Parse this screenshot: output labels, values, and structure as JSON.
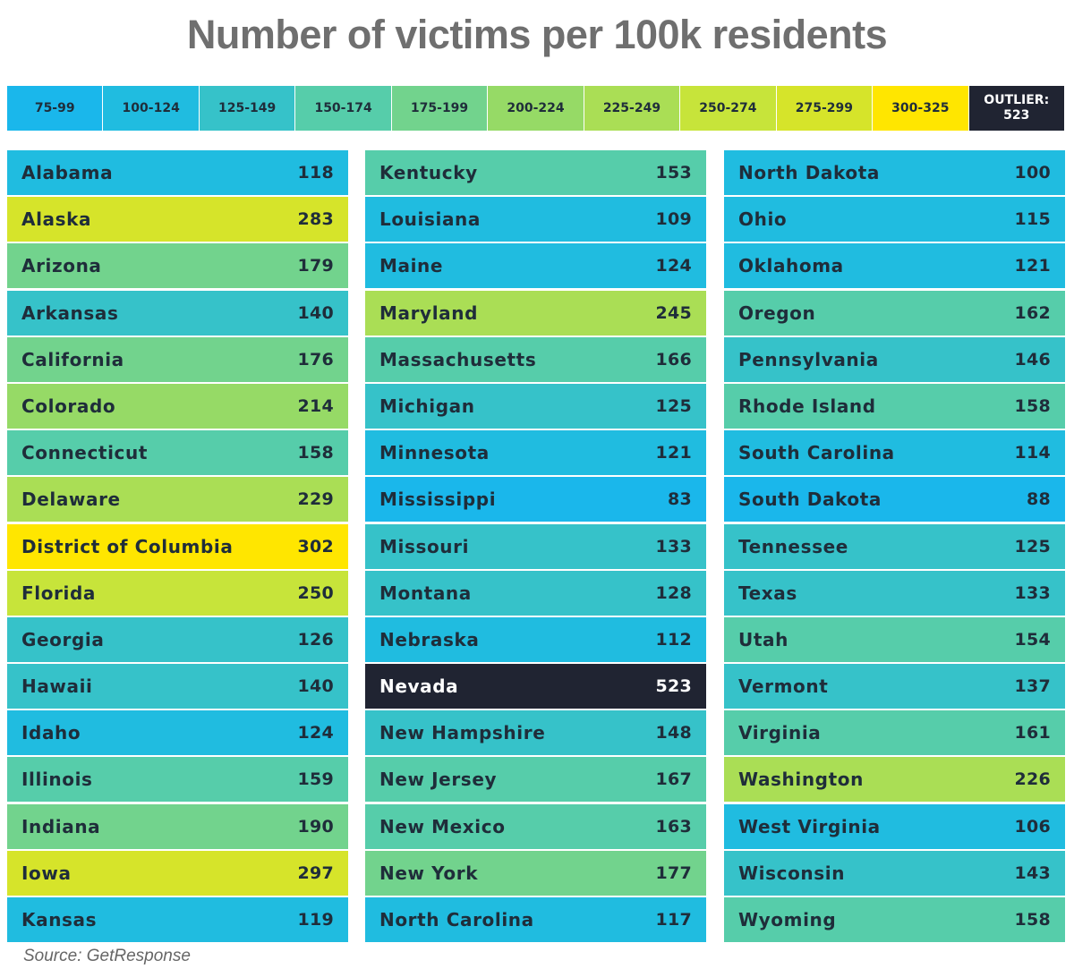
{
  "title": "Number of victims per 100k residents",
  "source": "Source: GetResponse",
  "legend": [
    {
      "label": "75-99",
      "color": "#1ab7eb"
    },
    {
      "label": "100-124",
      "color": "#20bce0"
    },
    {
      "label": "125-149",
      "color": "#36c2c9"
    },
    {
      "label": "150-174",
      "color": "#56cdaa"
    },
    {
      "label": "175-199",
      "color": "#72d38d"
    },
    {
      "label": "200-224",
      "color": "#96da66"
    },
    {
      "label": "225-249",
      "color": "#aade55"
    },
    {
      "label": "250-274",
      "color": "#c7e43a"
    },
    {
      "label": "275-299",
      "color": "#d6e42a"
    },
    {
      "label": "300-325",
      "color": "#ffe600"
    },
    {
      "label": "OUTLIER:\n523",
      "color": "#202432"
    }
  ],
  "chart_data": {
    "type": "table",
    "title": "Number of victims per 100k residents",
    "columns": [
      [
        {
          "state": "Alabama",
          "value": 118
        },
        {
          "state": "Alaska",
          "value": 283
        },
        {
          "state": "Arizona",
          "value": 179
        },
        {
          "state": "Arkansas",
          "value": 140
        },
        {
          "state": "California",
          "value": 176
        },
        {
          "state": "Colorado",
          "value": 214
        },
        {
          "state": "Connecticut",
          "value": 158
        },
        {
          "state": "Delaware",
          "value": 229
        },
        {
          "state": "District of Columbia",
          "value": 302
        },
        {
          "state": "Florida",
          "value": 250
        },
        {
          "state": "Georgia",
          "value": 126
        },
        {
          "state": "Hawaii",
          "value": 140
        },
        {
          "state": "Idaho",
          "value": 124
        },
        {
          "state": "Illinois",
          "value": 159
        },
        {
          "state": "Indiana",
          "value": 190
        },
        {
          "state": "Iowa",
          "value": 297
        },
        {
          "state": "Kansas",
          "value": 119
        }
      ],
      [
        {
          "state": "Kentucky",
          "value": 153
        },
        {
          "state": "Louisiana",
          "value": 109
        },
        {
          "state": "Maine",
          "value": 124
        },
        {
          "state": "Maryland",
          "value": 245
        },
        {
          "state": "Massachusetts",
          "value": 166
        },
        {
          "state": "Michigan",
          "value": 125
        },
        {
          "state": "Minnesota",
          "value": 121
        },
        {
          "state": "Mississippi",
          "value": 83
        },
        {
          "state": "Missouri",
          "value": 133
        },
        {
          "state": "Montana",
          "value": 128
        },
        {
          "state": "Nebraska",
          "value": 112
        },
        {
          "state": "Nevada",
          "value": 523
        },
        {
          "state": "New Hampshire",
          "value": 148
        },
        {
          "state": "New Jersey",
          "value": 167
        },
        {
          "state": "New Mexico",
          "value": 163
        },
        {
          "state": "New York",
          "value": 177
        },
        {
          "state": "North Carolina",
          "value": 117
        }
      ],
      [
        {
          "state": "North Dakota",
          "value": 100
        },
        {
          "state": "Ohio",
          "value": 115
        },
        {
          "state": "Oklahoma",
          "value": 121
        },
        {
          "state": "Oregon",
          "value": 162
        },
        {
          "state": "Pennsylvania",
          "value": 146
        },
        {
          "state": "Rhode Island",
          "value": 158
        },
        {
          "state": "South Carolina",
          "value": 114
        },
        {
          "state": "South Dakota",
          "value": 88
        },
        {
          "state": "Tennessee",
          "value": 125
        },
        {
          "state": "Texas",
          "value": 133
        },
        {
          "state": "Utah",
          "value": 154
        },
        {
          "state": "Vermont",
          "value": 137
        },
        {
          "state": "Virginia",
          "value": 161
        },
        {
          "state": "Washington",
          "value": 226
        },
        {
          "state": "West Virginia",
          "value": 106
        },
        {
          "state": "Wisconsin",
          "value": 143
        },
        {
          "state": "Wyoming",
          "value": 158
        }
      ]
    ]
  }
}
